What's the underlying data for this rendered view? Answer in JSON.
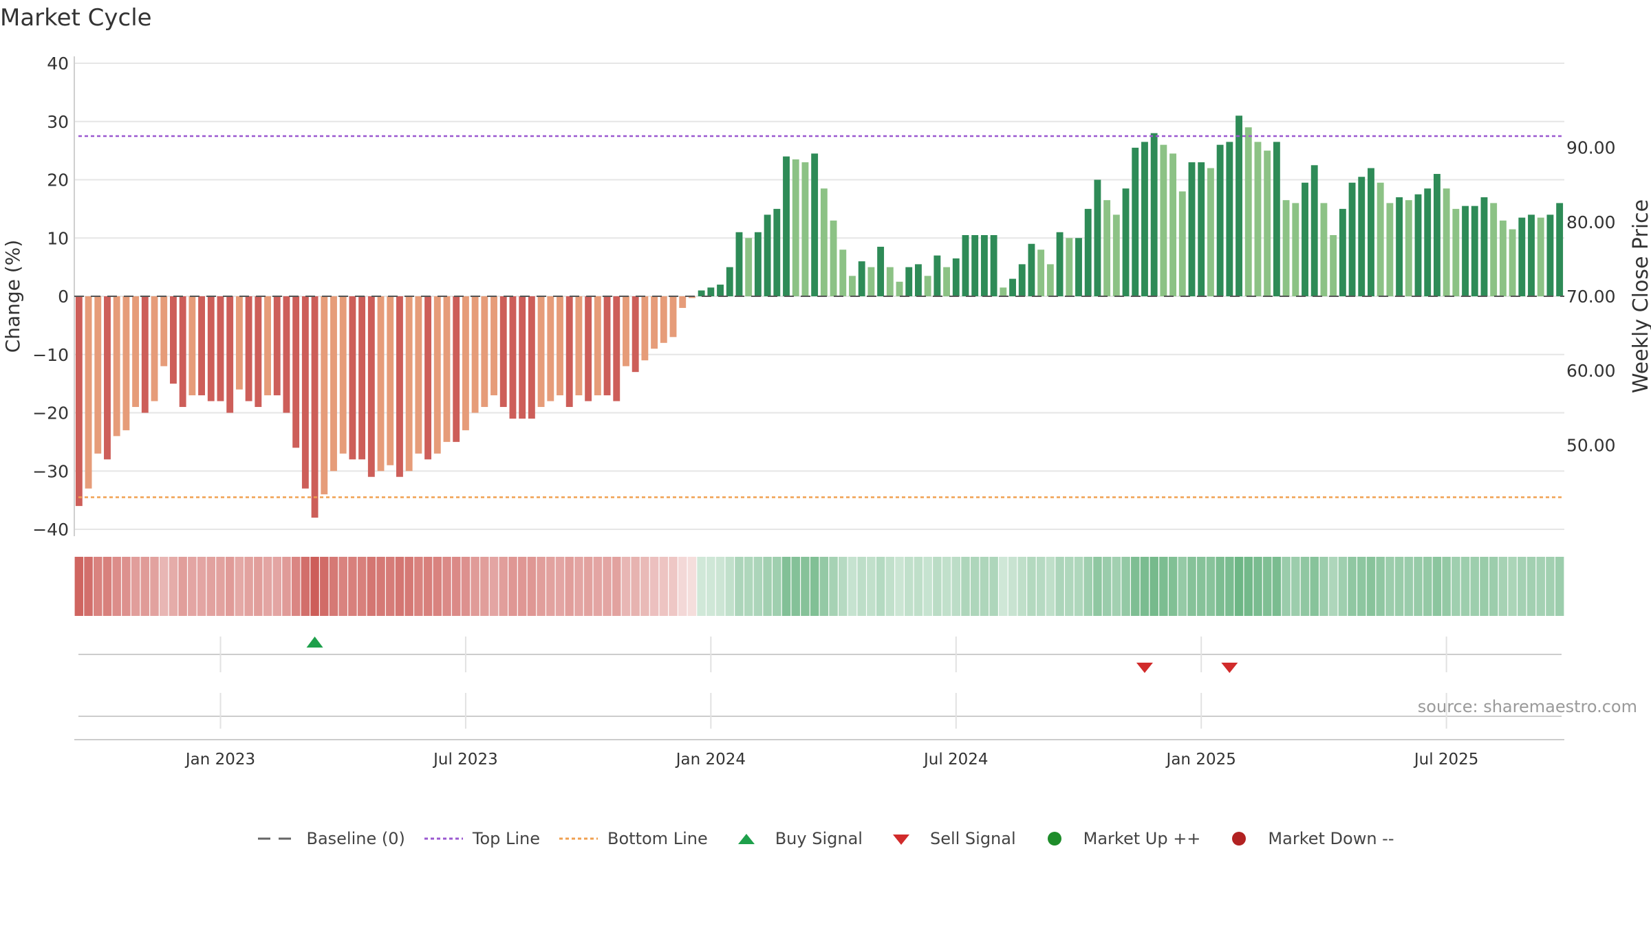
{
  "title": "Market Cycle",
  "source": "source: sharemaestro.com",
  "colors": {
    "neg_strong": "#cd5e59",
    "neg_light": "#e69c79",
    "pos_strong": "#2e8b57",
    "pos_light": "#8cc285",
    "top_line": "#9b59d0",
    "bottom_line": "#f0a050",
    "buy": "#1ea04b",
    "sell": "#d12b2b",
    "market_up": "#1e8c2a",
    "market_down": "#b22222"
  },
  "legend": [
    {
      "label": "Baseline (0)",
      "symbol": "dash"
    },
    {
      "label": "Top Line",
      "symbol": "dot-purple"
    },
    {
      "label": "Bottom Line",
      "symbol": "dot-orange"
    },
    {
      "label": "Buy Signal",
      "symbol": "tri-up"
    },
    {
      "label": "Sell Signal",
      "symbol": "tri-down"
    },
    {
      "label": "Market Up ++",
      "symbol": "circle-green"
    },
    {
      "label": "Market Down --",
      "symbol": "circle-red"
    }
  ],
  "chart_data": {
    "type": "bar",
    "title": "Market Cycle",
    "ylabel": "Change (%)",
    "ylabel_right": "Weekly Close Price",
    "ylim": [
      -40,
      40
    ],
    "y_ticks": [
      40,
      30,
      20,
      10,
      0,
      -10,
      -20,
      -30,
      -40
    ],
    "y_tick_labels": [
      "40",
      "30",
      "20",
      "10",
      "0",
      "−10",
      "−20",
      "−30",
      "−40"
    ],
    "y2_ticks": [
      90,
      80,
      70,
      60,
      50
    ],
    "y2_tick_labels": [
      "90.00",
      "80.00",
      "70.00",
      "60.00",
      "50.00"
    ],
    "top_line": 27.5,
    "bottom_line": -34.5,
    "x_tick_labels": [
      "Jan 2023",
      "Jul 2023",
      "Jan 2024",
      "Jul 2024",
      "Jan 2025",
      "Jul 2025"
    ],
    "x_tick_bar_index": [
      15,
      41,
      67,
      93,
      119,
      145
    ],
    "values": [
      -36,
      -33,
      -27,
      -28,
      -24,
      -23,
      -19,
      -20,
      -18,
      -12,
      -15,
      -19,
      -17,
      -17,
      -18,
      -18,
      -20,
      -16,
      -18,
      -19,
      -17,
      -17,
      -20,
      -26,
      -33,
      -38,
      -34,
      -30,
      -27,
      -28,
      -28,
      -31,
      -30,
      -29,
      -31,
      -30,
      -27,
      -28,
      -27,
      -25,
      -25,
      -23,
      -20,
      -19,
      -17,
      -19,
      -21,
      -21,
      -21,
      -19,
      -18,
      -17,
      -19,
      -17,
      -18,
      -17,
      -17,
      -18,
      -12,
      -13,
      -11,
      -9,
      -8,
      -7,
      -2,
      -0.3,
      1,
      1.5,
      2,
      5,
      11,
      10,
      11,
      14,
      15,
      24,
      23.5,
      23,
      24.5,
      18.5,
      13,
      8,
      3.5,
      6,
      5,
      8.5,
      5,
      2.5,
      5,
      5.5,
      3.5,
      7,
      5,
      6.5,
      10.5,
      10.5,
      10.5,
      10.5,
      1.5,
      3,
      5.5,
      9,
      8,
      5.5,
      11,
      10,
      10,
      15,
      20,
      16.5,
      14,
      18.5,
      25.5,
      26.5,
      28,
      26,
      24.5,
      18,
      23,
      23,
      22,
      26,
      26.5,
      31,
      29,
      26.5,
      25,
      26.5,
      16.5,
      16,
      19.5,
      22.5,
      16,
      10.5,
      15,
      19.5,
      20.5,
      22,
      19.5,
      16,
      17,
      16.5,
      17.5,
      18.5,
      21,
      18.5,
      15,
      15.5,
      15.5,
      17,
      16,
      13,
      11.5,
      13.5,
      14,
      13.5,
      14,
      16
    ],
    "buy_signal_bar_index": [
      25
    ],
    "sell_signal_bar_index": [
      113,
      122
    ]
  }
}
